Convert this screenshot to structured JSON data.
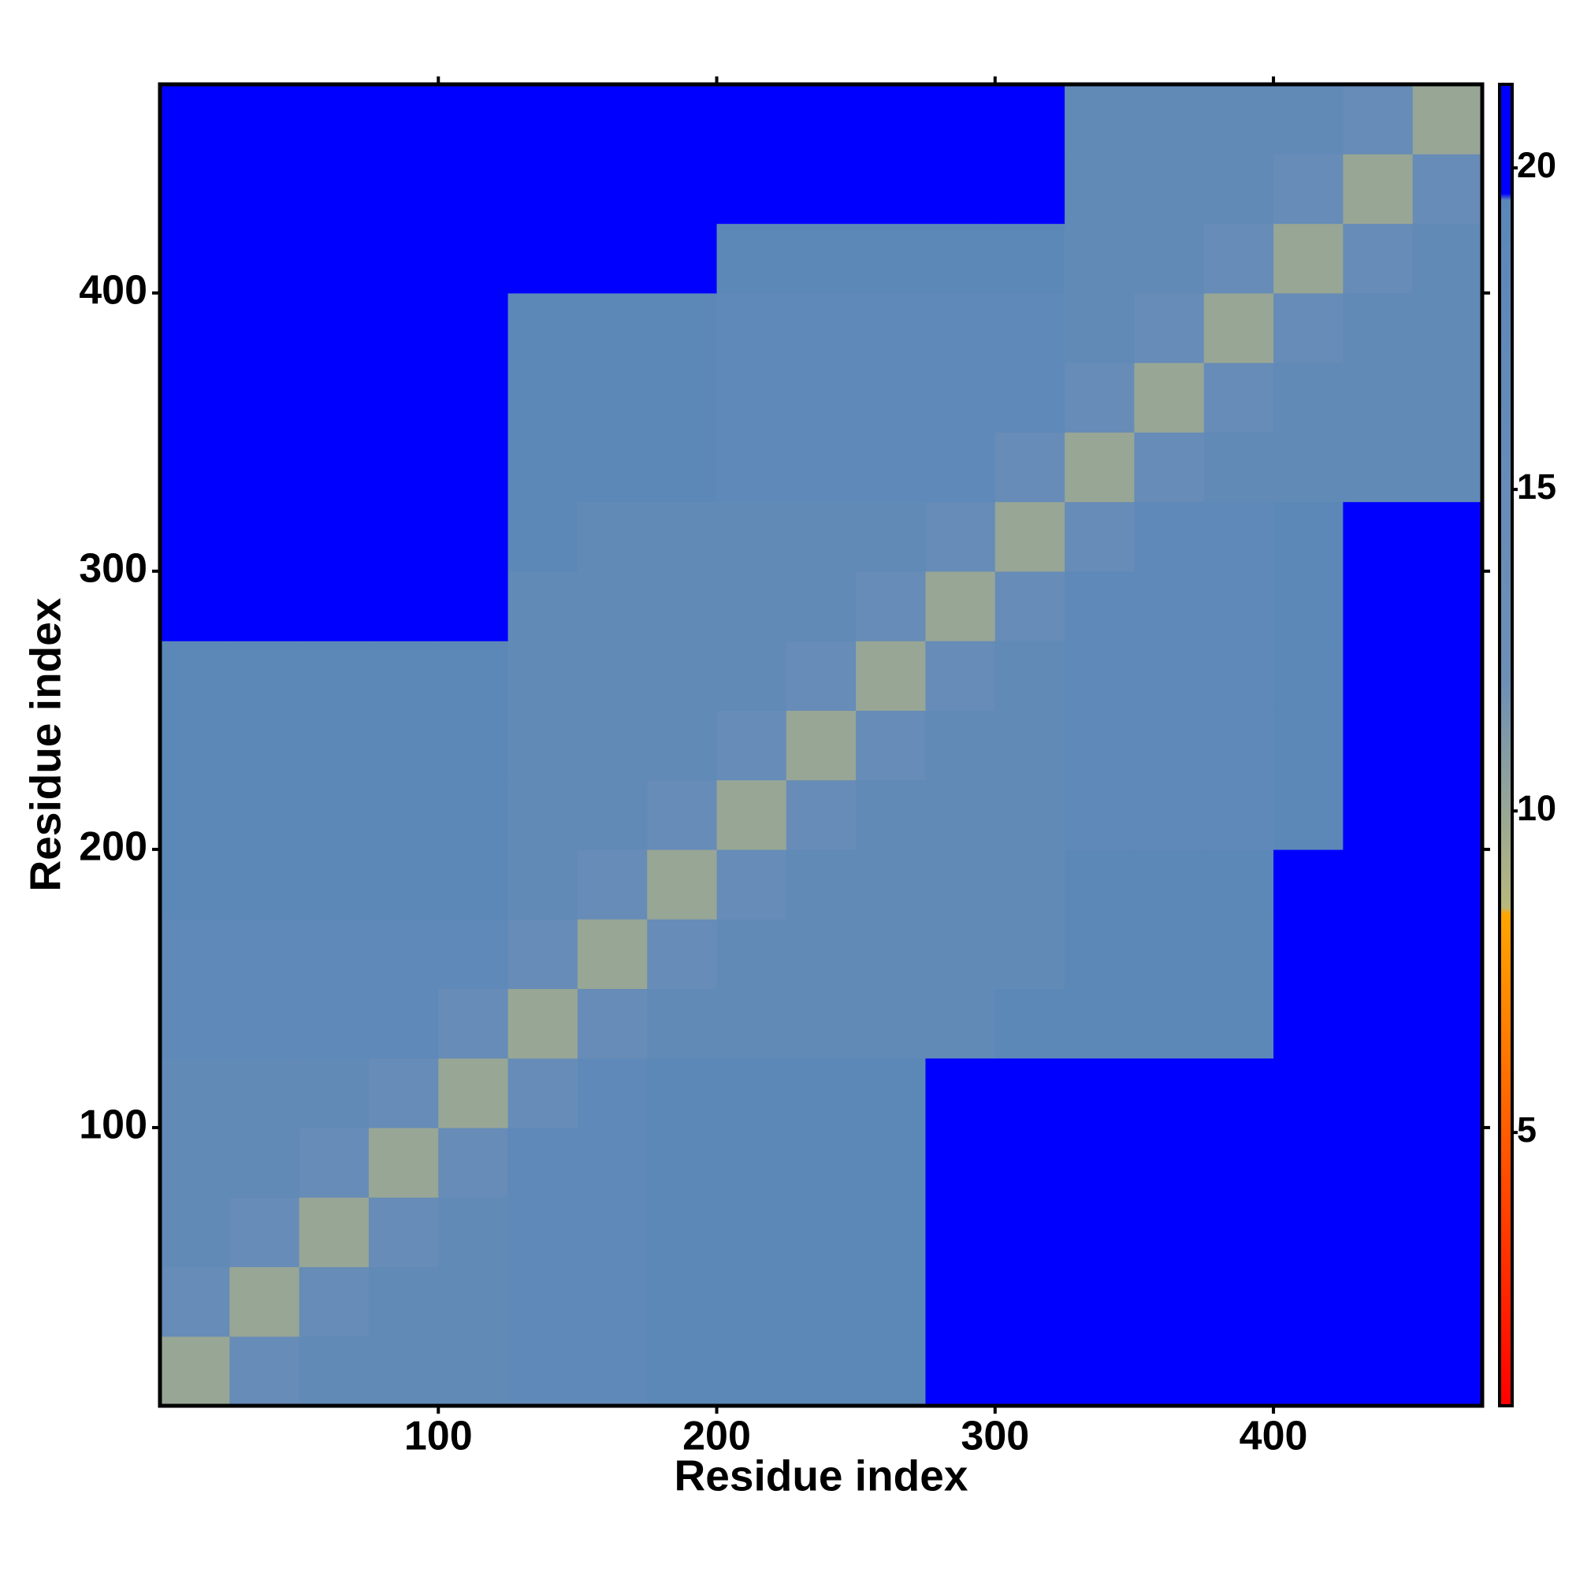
{
  "chart_data": {
    "type": "heatmap",
    "x_label": "Residue index",
    "y_label": "Residue index",
    "xlim": [
      0,
      475
    ],
    "ylim": [
      0,
      475
    ],
    "xticks": [
      100,
      200,
      300,
      400
    ],
    "yticks": [
      100,
      200,
      300,
      400
    ],
    "x_bins": [
      0,
      25,
      50,
      75,
      100,
      125,
      150,
      175,
      200,
      225,
      250,
      275,
      300,
      325,
      350,
      375,
      400,
      425,
      450,
      475
    ],
    "y_bins": [
      0,
      25,
      50,
      75,
      100,
      125,
      150,
      175,
      200,
      225,
      250,
      275,
      300,
      325,
      350,
      375,
      400,
      425,
      450,
      475
    ],
    "z": [
      [
        10,
        15,
        17,
        17,
        17,
        18,
        18,
        19,
        19,
        19,
        19,
        21,
        21,
        21,
        21,
        21,
        21,
        21,
        21
      ],
      [
        15,
        10,
        15,
        17,
        17,
        18,
        18,
        19,
        19,
        19,
        19,
        21,
        21,
        21,
        21,
        21,
        21,
        21,
        21
      ],
      [
        17,
        15,
        10,
        15,
        17,
        18,
        18,
        19,
        19,
        19,
        19,
        21,
        21,
        21,
        21,
        21,
        21,
        21,
        21
      ],
      [
        17,
        17,
        15,
        10,
        15,
        18,
        18,
        19,
        19,
        19,
        19,
        21,
        21,
        21,
        21,
        21,
        21,
        21,
        21
      ],
      [
        17,
        17,
        17,
        15,
        10,
        15,
        18,
        19,
        19,
        19,
        19,
        21,
        21,
        21,
        21,
        21,
        21,
        21,
        21
      ],
      [
        18,
        18,
        18,
        18,
        15,
        10,
        15,
        17,
        17,
        17,
        17,
        17,
        19,
        19,
        19,
        19,
        21,
        21,
        21
      ],
      [
        18,
        18,
        18,
        18,
        18,
        15,
        10,
        15,
        17,
        17,
        17,
        17,
        17,
        19,
        19,
        19,
        21,
        21,
        21
      ],
      [
        19,
        19,
        19,
        19,
        19,
        17,
        15,
        10,
        15,
        17,
        17,
        17,
        17,
        19,
        19,
        19,
        21,
        21,
        21
      ],
      [
        19,
        19,
        19,
        19,
        19,
        17,
        17,
        15,
        10,
        15,
        17,
        17,
        17,
        18,
        18,
        18,
        19,
        21,
        21
      ],
      [
        19,
        19,
        19,
        19,
        19,
        17,
        17,
        17,
        15,
        10,
        15,
        17,
        17,
        18,
        18,
        18,
        19,
        21,
        21
      ],
      [
        19,
        19,
        19,
        19,
        19,
        17,
        17,
        17,
        17,
        15,
        10,
        15,
        17,
        18,
        18,
        18,
        19,
        21,
        21
      ],
      [
        21,
        21,
        21,
        21,
        21,
        17,
        17,
        17,
        17,
        17,
        15,
        10,
        15,
        18,
        18,
        18,
        19,
        21,
        21
      ],
      [
        21,
        21,
        21,
        21,
        21,
        19,
        17,
        17,
        17,
        17,
        17,
        15,
        10,
        15,
        18,
        18,
        19,
        21,
        21
      ],
      [
        21,
        21,
        21,
        21,
        21,
        19,
        19,
        19,
        18,
        18,
        18,
        18,
        15,
        10,
        15,
        17,
        17,
        17,
        17
      ],
      [
        21,
        21,
        21,
        21,
        21,
        19,
        19,
        19,
        18,
        18,
        18,
        18,
        18,
        15,
        10,
        15,
        17,
        17,
        17
      ],
      [
        21,
        21,
        21,
        21,
        21,
        19,
        19,
        19,
        18,
        18,
        18,
        18,
        18,
        17,
        15,
        10,
        15,
        17,
        17
      ],
      [
        21,
        21,
        21,
        21,
        21,
        21,
        21,
        21,
        19,
        19,
        19,
        19,
        19,
        17,
        17,
        15,
        10,
        15,
        17
      ],
      [
        21,
        21,
        21,
        21,
        21,
        21,
        21,
        21,
        21,
        21,
        21,
        21,
        21,
        17,
        17,
        17,
        15,
        10,
        15
      ],
      [
        21,
        21,
        21,
        21,
        21,
        21,
        21,
        21,
        21,
        21,
        21,
        21,
        21,
        17,
        17,
        17,
        17,
        15,
        10
      ]
    ],
    "zlim": [
      0.75,
      21.3
    ],
    "zticks": [
      5,
      10,
      15,
      20
    ],
    "colorscale": [
      {
        "value": 0.75,
        "color": "#ff0000"
      },
      {
        "value": 8.4,
        "color": "#ffa500"
      },
      {
        "value": 8.5,
        "color": "#b8b87c"
      },
      {
        "value": 12,
        "color": "#6d8fb6"
      },
      {
        "value": 19.5,
        "color": "#5b87b8"
      },
      {
        "value": 19.6,
        "color": "#0000ff"
      },
      {
        "value": 21.3,
        "color": "#0000ff"
      }
    ]
  }
}
